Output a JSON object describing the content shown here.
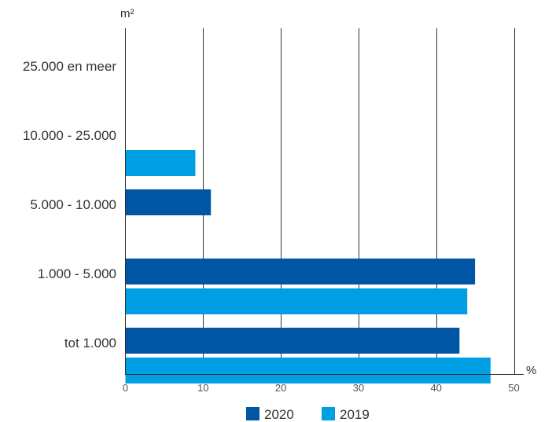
{
  "chart_data": {
    "type": "bar",
    "orientation": "horizontal",
    "categories": [
      "25.000 en meer",
      "10.000 - 25.000",
      "5.000 - 10.000",
      "1.000 - 5.000",
      "tot 1.000"
    ],
    "series": [
      {
        "name": "2020",
        "color": "#0055a5",
        "values": [
          0,
          0,
          11,
          45,
          43
        ]
      },
      {
        "name": "2019",
        "color": "#009fe3",
        "values": [
          0,
          9,
          0,
          44,
          47
        ]
      }
    ],
    "xlim": [
      0,
      50
    ],
    "xticks": [
      0,
      10,
      20,
      30,
      40,
      50
    ],
    "xunit": "%",
    "yunit": "m²",
    "grid": "vertical",
    "legend_position": "bottom"
  }
}
